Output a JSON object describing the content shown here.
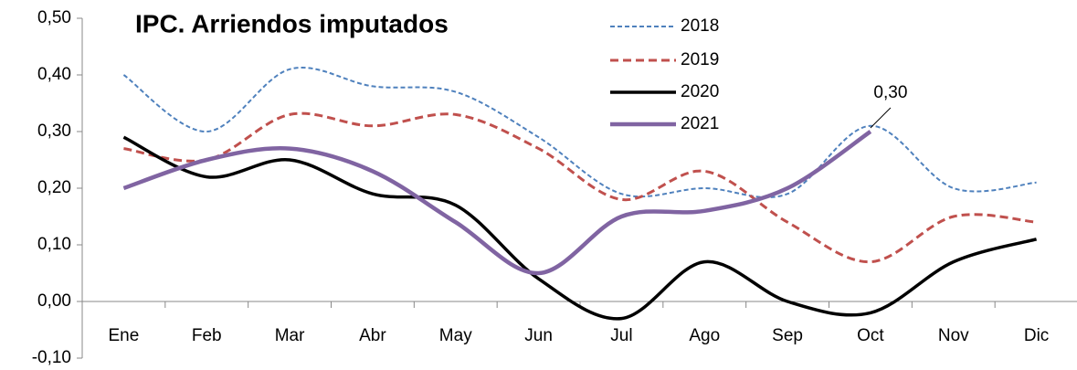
{
  "chart_data": {
    "type": "line",
    "title": "IPC. Arriendos imputados",
    "categories": [
      "Ene",
      "Feb",
      "Mar",
      "Abr",
      "May",
      "Jun",
      "Jul",
      "Ago",
      "Sep",
      "Oct",
      "Nov",
      "Dic"
    ],
    "series": [
      {
        "name": "2018",
        "color": "#4f81bd",
        "dashed": true,
        "values": [
          0.4,
          0.3,
          0.41,
          0.38,
          0.37,
          0.29,
          0.19,
          0.2,
          0.19,
          0.31,
          0.2,
          0.21
        ]
      },
      {
        "name": "2019",
        "color": "#c0504d",
        "dashed": true,
        "values": [
          0.27,
          0.25,
          0.33,
          0.31,
          0.33,
          0.27,
          0.18,
          0.23,
          0.14,
          0.07,
          0.15,
          0.14
        ]
      },
      {
        "name": "2020",
        "color": "#000000",
        "dashed": false,
        "values": [
          0.29,
          0.22,
          0.25,
          0.19,
          0.17,
          0.04,
          -0.03,
          0.07,
          0.0,
          -0.02,
          0.07,
          0.11
        ]
      },
      {
        "name": "2021",
        "color": "#8064a2",
        "dashed": false,
        "values": [
          0.2,
          0.25,
          0.27,
          0.23,
          0.14,
          0.05,
          0.15,
          0.16,
          0.2,
          0.3,
          null,
          null
        ],
        "value_labels": [
          null,
          null,
          null,
          null,
          null,
          null,
          null,
          null,
          null,
          "0,30",
          null,
          null
        ]
      }
    ],
    "ylim": [
      -0.1,
      0.5
    ],
    "yticks": [
      {
        "value": -0.1,
        "label": "-0,10"
      },
      {
        "value": 0.0,
        "label": "0,00"
      },
      {
        "value": 0.1,
        "label": "0,10"
      },
      {
        "value": 0.2,
        "label": "0,20"
      },
      {
        "value": 0.3,
        "label": "0,30"
      },
      {
        "value": 0.4,
        "label": "0,40"
      },
      {
        "value": 0.5,
        "label": "0,50"
      }
    ],
    "grid": false,
    "legend": "top-right"
  }
}
